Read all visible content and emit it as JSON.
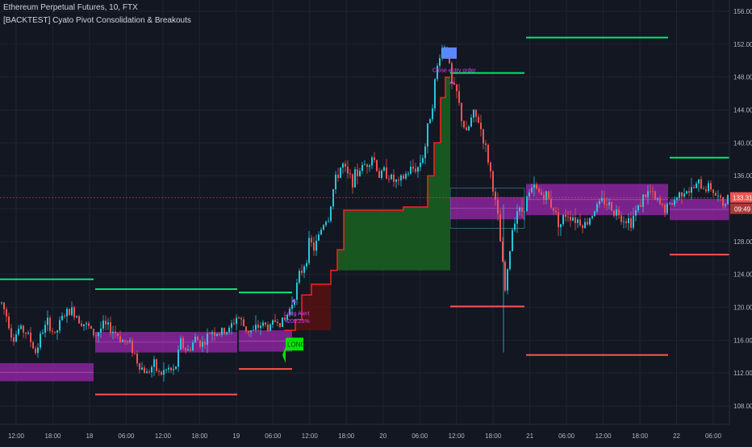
{
  "header": {
    "title": "Ethereum Perpetual Futures, 10, FTX",
    "subtitle": "[BACKTEST] Cyato Pivot Consolidation & Breakouts"
  },
  "chart_data": {
    "type": "candlestick",
    "title": "Ethereum Perpetual Futures, 10, FTX",
    "subtitle": "[BACKTEST] Cyato Pivot Consolidation & Breakouts",
    "ylim": [
      106,
      158
    ],
    "y_ticks": [
      "108.00",
      "112.00",
      "116.00",
      "120.00",
      "124.00",
      "128.00",
      "132.00",
      "136.00",
      "140.00",
      "144.00",
      "148.00",
      "152.00",
      "156.00"
    ],
    "x_ticks": [
      "12:00",
      "18:00",
      "18",
      "06:00",
      "12:00",
      "18:00",
      "19",
      "06:00",
      "12:00",
      "18:00",
      "20",
      "06:00",
      "12:00",
      "18:00",
      "21",
      "06:00",
      "12:00",
      "18:00",
      "22",
      "06:00"
    ],
    "last_price": "133.31",
    "countdown": "09:49",
    "price_path": [
      [
        0,
        121.0
      ],
      [
        10,
        118.5
      ],
      [
        16,
        116.0
      ],
      [
        24,
        117.5
      ],
      [
        34,
        116.8
      ],
      [
        44,
        114.5
      ],
      [
        52,
        117.0
      ],
      [
        60,
        118.2
      ],
      [
        68,
        116.5
      ],
      [
        78,
        119.0
      ],
      [
        90,
        119.6
      ],
      [
        100,
        118.4
      ],
      [
        110,
        117.5
      ],
      [
        118,
        116.5
      ],
      [
        128,
        117.8
      ],
      [
        140,
        117.2
      ],
      [
        152,
        116.0
      ],
      [
        162,
        115.5
      ],
      [
        172,
        113.0
      ],
      [
        182,
        112.0
      ],
      [
        190,
        113.0
      ],
      [
        198,
        111.8
      ],
      [
        208,
        112.5
      ],
      [
        216,
        112.0
      ],
      [
        224,
        115.8
      ],
      [
        232,
        114.5
      ],
      [
        242,
        116.2
      ],
      [
        252,
        115.5
      ],
      [
        262,
        117.2
      ],
      [
        272,
        116.8
      ],
      [
        284,
        117.2
      ],
      [
        294,
        119.0
      ],
      [
        304,
        117.4
      ],
      [
        314,
        117.0
      ],
      [
        324,
        118.0
      ],
      [
        334,
        117.5
      ],
      [
        342,
        118.5
      ],
      [
        352,
        118.2
      ],
      [
        360,
        120.0
      ],
      [
        366,
        122.0
      ],
      [
        372,
        124.0
      ],
      [
        378,
        125.5
      ],
      [
        384,
        128.0
      ],
      [
        390,
        127.0
      ],
      [
        396,
        129.0
      ],
      [
        402,
        130.5
      ],
      [
        408,
        131.0
      ],
      [
        412,
        134.0
      ],
      [
        418,
        136.0
      ],
      [
        424,
        137.5
      ],
      [
        430,
        136.0
      ],
      [
        438,
        135.5
      ],
      [
        446,
        136.8
      ],
      [
        454,
        137.5
      ],
      [
        462,
        138.5
      ],
      [
        470,
        136.0
      ],
      [
        478,
        136.6
      ],
      [
        486,
        135.5
      ],
      [
        494,
        135.0
      ],
      [
        502,
        136.0
      ],
      [
        510,
        136.8
      ],
      [
        518,
        137.0
      ],
      [
        526,
        139.0
      ],
      [
        532,
        143.0
      ],
      [
        536,
        145.0
      ],
      [
        540,
        148.0
      ],
      [
        544,
        150.5
      ],
      [
        548,
        151.5
      ],
      [
        552,
        152.0
      ],
      [
        556,
        150.0
      ],
      [
        560,
        147.0
      ],
      [
        566,
        146.0
      ],
      [
        572,
        143.0
      ],
      [
        578,
        141.0
      ],
      [
        586,
        143.5
      ],
      [
        594,
        142.5
      ],
      [
        600,
        140.0
      ],
      [
        606,
        137.5
      ],
      [
        612,
        134.0
      ],
      [
        618,
        130.0
      ],
      [
        622,
        126.0
      ],
      [
        626,
        122.0
      ],
      [
        630,
        125.0
      ],
      [
        634,
        129.0
      ],
      [
        640,
        132.0
      ],
      [
        646,
        131.5
      ],
      [
        654,
        133.5
      ],
      [
        662,
        134.5
      ],
      [
        670,
        133.8
      ],
      [
        678,
        133.5
      ],
      [
        686,
        132.0
      ],
      [
        694,
        130.0
      ],
      [
        702,
        131.5
      ],
      [
        710,
        131.0
      ],
      [
        718,
        130.5
      ],
      [
        726,
        130.0
      ],
      [
        734,
        131.5
      ],
      [
        742,
        132.5
      ],
      [
        750,
        133.0
      ],
      [
        758,
        132.0
      ],
      [
        766,
        131.5
      ],
      [
        774,
        130.8
      ],
      [
        782,
        130.5
      ],
      [
        790,
        132.0
      ],
      [
        798,
        133.5
      ],
      [
        806,
        134.0
      ],
      [
        812,
        133.0
      ],
      [
        818,
        132.5
      ],
      [
        824,
        132.0
      ],
      [
        832,
        132.5
      ],
      [
        840,
        133.5
      ],
      [
        848,
        134.5
      ],
      [
        856,
        134.0
      ],
      [
        864,
        135.0
      ],
      [
        872,
        134.5
      ],
      [
        880,
        134.8
      ],
      [
        888,
        133.5
      ],
      [
        896,
        132.5
      ],
      [
        904,
        133.3
      ]
    ],
    "trail_stop": [
      [
        352,
        117.2
      ],
      [
        366,
        117.2
      ],
      [
        366,
        118.5
      ],
      [
        374,
        118.5
      ],
      [
        374,
        121.5
      ],
      [
        386,
        121.5
      ],
      [
        386,
        122.8
      ],
      [
        410,
        122.8
      ],
      [
        410,
        124.5
      ],
      [
        418,
        124.5
      ],
      [
        418,
        127.0
      ],
      [
        426,
        127.0
      ],
      [
        426,
        131.8
      ],
      [
        500,
        131.8
      ],
      [
        500,
        132.2
      ],
      [
        530,
        132.2
      ],
      [
        530,
        136.0
      ],
      [
        538,
        136.0
      ],
      [
        538,
        140.0
      ],
      [
        546,
        140.0
      ],
      [
        546,
        145.5
      ],
      [
        552,
        145.5
      ],
      [
        552,
        148.0
      ],
      [
        558,
        148.0
      ]
    ],
    "boxes": [
      {
        "x0": 0,
        "x1": 116,
        "y0": 111.0,
        "y1": 113.2
      },
      {
        "x0": 118,
        "x1": 294,
        "y0": 114.5,
        "y1": 117.0
      },
      {
        "x0": 296,
        "x1": 362,
        "y0": 114.6,
        "y1": 117.2
      },
      {
        "x0": 558,
        "x1": 650,
        "y0": 130.7,
        "y1": 133.4
      },
      {
        "x0": 652,
        "x1": 828,
        "y0": 131.2,
        "y1": 135.0
      },
      {
        "x0": 830,
        "x1": 904,
        "y0": 130.6,
        "y1": 133.2
      }
    ],
    "resistance_lines": [
      {
        "x0": 0,
        "x1": 116,
        "y": 123.4
      },
      {
        "x0": 118,
        "x1": 294,
        "y": 122.2
      },
      {
        "x0": 296,
        "x1": 362,
        "y": 121.8
      },
      {
        "x0": 558,
        "x1": 650,
        "y": 148.5
      },
      {
        "x0": 652,
        "x1": 828,
        "y": 152.8
      },
      {
        "x0": 830,
        "x1": 904,
        "y": 138.2
      }
    ],
    "support_lines": [
      {
        "x0": 118,
        "x1": 294,
        "y": 109.4
      },
      {
        "x0": 296,
        "x1": 362,
        "y": 112.5
      },
      {
        "x0": 558,
        "x1": 650,
        "y": 120.1
      },
      {
        "x0": 652,
        "x1": 828,
        "y": 114.2
      },
      {
        "x0": 830,
        "x1": 904,
        "y": 126.4
      }
    ],
    "annotations": {
      "long_label": "LONG",
      "long_alert": "Long Alert",
      "long_profit": "+209.25%",
      "exit_label": "Close entry order"
    }
  },
  "colors": {
    "background": "#131722",
    "grid": "#1f2430",
    "axis_text": "#b2b5be",
    "candle_up": "#26c6da",
    "candle_down": "#ef5350",
    "box_fill": "#9c27b0",
    "resistance": "#00e676",
    "support": "#ff5252",
    "trail": "#ff1e1e",
    "trail_fill": "#1b5e20",
    "long_badge": "#00e600",
    "exit_badge": "#5c88ff",
    "annotation_text": "#e040fb",
    "price_label": "#ef5350"
  }
}
